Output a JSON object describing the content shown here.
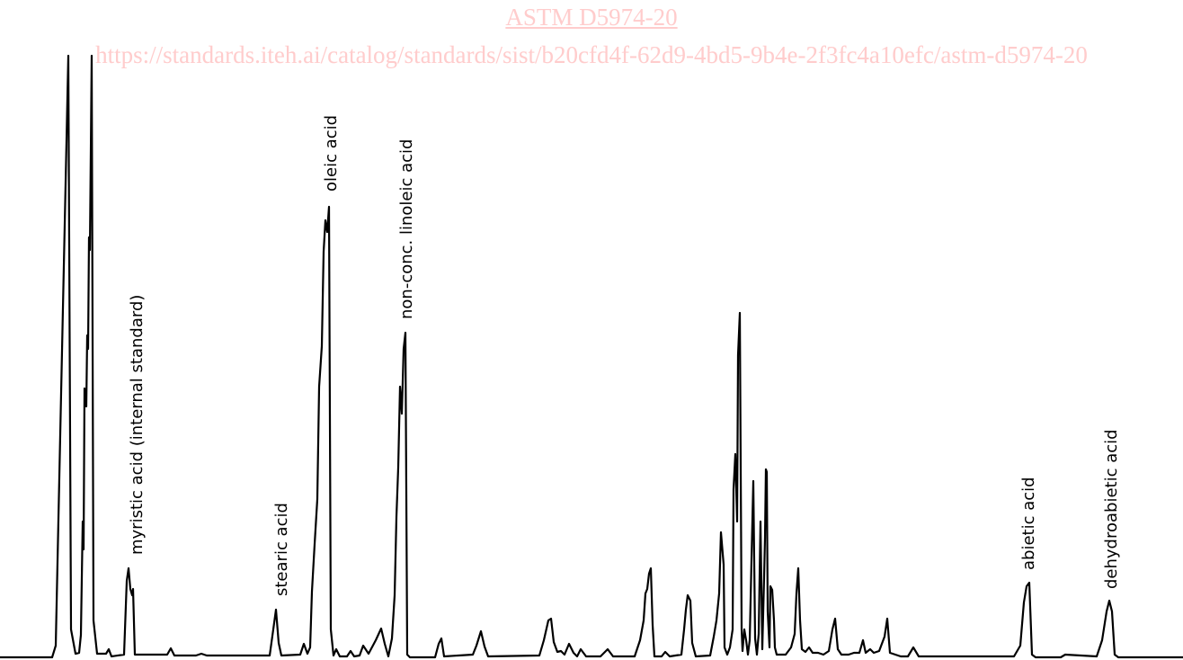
{
  "watermark": {
    "title": "ASTM D5974-20",
    "url": "https://standards.iteh.ai/catalog/standards/sist/b20cfd4f-62d9-4bd5-9b4e-2f3fc4a10efc/astm-d5974-20",
    "color": "#ffcccc"
  },
  "chart_data": {
    "type": "line",
    "title": "",
    "xlabel": "",
    "ylabel": "",
    "grid": false,
    "line_color": "#000000",
    "peak_labels": [
      "myristic acid (internal standard)",
      "stearic acid",
      "oleic acid",
      "non-conc. linoleic acid",
      "abietic acid",
      "dehydroabietic acid"
    ]
  }
}
